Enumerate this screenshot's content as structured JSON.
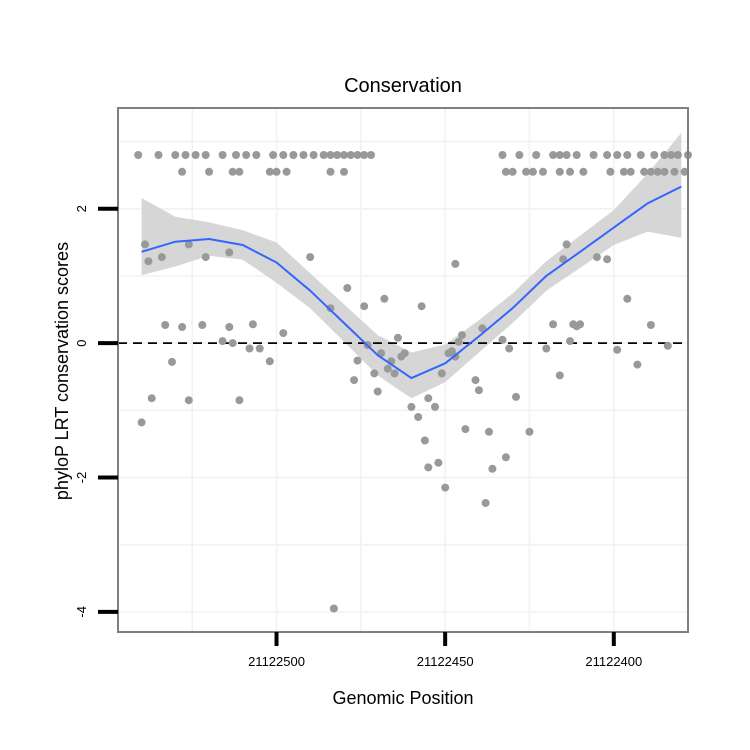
{
  "chart_data": {
    "type": "scatter",
    "title": "Conservation",
    "xlabel": "Genomic Position",
    "ylabel": "phyloP LRT conservation scores",
    "x_reversed": true,
    "xlim": [
      21122547,
      21122378
    ],
    "ylim": [
      -4.3,
      3.5
    ],
    "x_ticks": [
      {
        "value": 21122500,
        "label": "21122500"
      },
      {
        "value": 21122450,
        "label": "21122450"
      },
      {
        "value": 21122400,
        "label": "21122400"
      }
    ],
    "y_ticks": [
      {
        "value": 2,
        "label": "2"
      },
      {
        "value": 0,
        "label": "0"
      },
      {
        "value": -2,
        "label": "-2"
      },
      {
        "value": -4,
        "label": "-4"
      }
    ],
    "reference_line": {
      "y": 0,
      "style": "dashed"
    },
    "grid": true,
    "colors": {
      "points": "#999999",
      "smooth_line": "#3366ff",
      "ribbon": "#cccccc",
      "grid": "#f2f2f2",
      "frame": "#7f7f7f",
      "reference_line": "#000000"
    },
    "points": [
      [
        21122541,
        2.8
      ],
      [
        21122535,
        2.8
      ],
      [
        21122530,
        2.8
      ],
      [
        21122527,
        2.8
      ],
      [
        21122524,
        2.8
      ],
      [
        21122521,
        2.8
      ],
      [
        21122516,
        2.8
      ],
      [
        21122512,
        2.8
      ],
      [
        21122509,
        2.8
      ],
      [
        21122506,
        2.8
      ],
      [
        21122501,
        2.8
      ],
      [
        21122498,
        2.8
      ],
      [
        21122495,
        2.8
      ],
      [
        21122492,
        2.8
      ],
      [
        21122489,
        2.8
      ],
      [
        21122486,
        2.8
      ],
      [
        21122484,
        2.8
      ],
      [
        21122482,
        2.8
      ],
      [
        21122480,
        2.8
      ],
      [
        21122478,
        2.8
      ],
      [
        21122476,
        2.8
      ],
      [
        21122474,
        2.8
      ],
      [
        21122472,
        2.8
      ],
      [
        21122528,
        2.55
      ],
      [
        21122520,
        2.55
      ],
      [
        21122513,
        2.55
      ],
      [
        21122511,
        2.55
      ],
      [
        21122502,
        2.55
      ],
      [
        21122500,
        2.55
      ],
      [
        21122497,
        2.55
      ],
      [
        21122484,
        2.55
      ],
      [
        21122480,
        2.55
      ],
      [
        21122433,
        2.8
      ],
      [
        21122428,
        2.8
      ],
      [
        21122423,
        2.8
      ],
      [
        21122418,
        2.8
      ],
      [
        21122416,
        2.8
      ],
      [
        21122414,
        2.8
      ],
      [
        21122411,
        2.8
      ],
      [
        21122406,
        2.8
      ],
      [
        21122402,
        2.8
      ],
      [
        21122399,
        2.8
      ],
      [
        21122396,
        2.8
      ],
      [
        21122392,
        2.8
      ],
      [
        21122388,
        2.8
      ],
      [
        21122385,
        2.8
      ],
      [
        21122383,
        2.8
      ],
      [
        21122381,
        2.8
      ],
      [
        21122378,
        2.8
      ],
      [
        21122432,
        2.55
      ],
      [
        21122430,
        2.55
      ],
      [
        21122426,
        2.55
      ],
      [
        21122424,
        2.55
      ],
      [
        21122421,
        2.55
      ],
      [
        21122416,
        2.55
      ],
      [
        21122413,
        2.55
      ],
      [
        21122409,
        2.55
      ],
      [
        21122401,
        2.55
      ],
      [
        21122397,
        2.55
      ],
      [
        21122395,
        2.55
      ],
      [
        21122391,
        2.55
      ],
      [
        21122389,
        2.55
      ],
      [
        21122387,
        2.55
      ],
      [
        21122385,
        2.55
      ],
      [
        21122382,
        2.55
      ],
      [
        21122379,
        2.55
      ],
      [
        21122539,
        1.47
      ],
      [
        21122538,
        1.22
      ],
      [
        21122534,
        1.28
      ],
      [
        21122526,
        1.47
      ],
      [
        21122521,
        1.28
      ],
      [
        21122514,
        1.35
      ],
      [
        21122490,
        1.28
      ],
      [
        21122484,
        0.52
      ],
      [
        21122479,
        0.82
      ],
      [
        21122474,
        0.55
      ],
      [
        21122468,
        0.66
      ],
      [
        21122457,
        0.55
      ],
      [
        21122447,
        1.18
      ],
      [
        21122533,
        0.27
      ],
      [
        21122531,
        -0.28
      ],
      [
        21122528,
        0.24
      ],
      [
        21122522,
        0.27
      ],
      [
        21122516,
        0.03
      ],
      [
        21122514,
        0.24
      ],
      [
        21122513,
        0.0
      ],
      [
        21122508,
        -0.08
      ],
      [
        21122507,
        0.28
      ],
      [
        21122505,
        -0.08
      ],
      [
        21122502,
        -0.27
      ],
      [
        21122498,
        0.15
      ],
      [
        21122540,
        -1.18
      ],
      [
        21122537,
        -0.82
      ],
      [
        21122526,
        -0.85
      ],
      [
        21122511,
        -0.85
      ],
      [
        21122477,
        -0.55
      ],
      [
        21122476,
        -0.26
      ],
      [
        21122473,
        -0.03
      ],
      [
        21122471,
        -0.45
      ],
      [
        21122470,
        -0.72
      ],
      [
        21122469,
        -0.15
      ],
      [
        21122467,
        -0.38
      ],
      [
        21122466,
        -0.27
      ],
      [
        21122465,
        -0.45
      ],
      [
        21122464,
        0.08
      ],
      [
        21122463,
        -0.2
      ],
      [
        21122462,
        -0.15
      ],
      [
        21122460,
        -0.95
      ],
      [
        21122458,
        -1.1
      ],
      [
        21122456,
        -1.45
      ],
      [
        21122455,
        -1.85
      ],
      [
        21122455,
        -0.82
      ],
      [
        21122453,
        -0.95
      ],
      [
        21122452,
        -1.78
      ],
      [
        21122450,
        -2.15
      ],
      [
        21122451,
        -0.45
      ],
      [
        21122449,
        -0.15
      ],
      [
        21122448,
        -0.12
      ],
      [
        21122447,
        -0.2
      ],
      [
        21122446,
        0.02
      ],
      [
        21122445,
        0.12
      ],
      [
        21122444,
        -1.28
      ],
      [
        21122441,
        -0.55
      ],
      [
        21122440,
        -0.7
      ],
      [
        21122439,
        0.22
      ],
      [
        21122438,
        -2.38
      ],
      [
        21122437,
        -1.32
      ],
      [
        21122436,
        -1.87
      ],
      [
        21122433,
        0.05
      ],
      [
        21122432,
        -1.7
      ],
      [
        21122431,
        -0.08
      ],
      [
        21122429,
        -0.8
      ],
      [
        21122425,
        -1.32
      ],
      [
        21122420,
        -0.08
      ],
      [
        21122418,
        0.28
      ],
      [
        21122415,
        1.25
      ],
      [
        21122414,
        1.47
      ],
      [
        21122413,
        0.03
      ],
      [
        21122412,
        0.28
      ],
      [
        21122411,
        0.25
      ],
      [
        21122410,
        0.28
      ],
      [
        21122416,
        -0.48
      ],
      [
        21122405,
        1.28
      ],
      [
        21122402,
        1.25
      ],
      [
        21122399,
        -0.1
      ],
      [
        21122396,
        0.66
      ],
      [
        21122393,
        -0.32
      ],
      [
        21122389,
        0.27
      ],
      [
        21122384,
        -0.04
      ],
      [
        21122483,
        -3.95
      ]
    ],
    "smooth_fit": [
      {
        "x": 21122540,
        "y": 1.36,
        "lo": 1.01,
        "hi": 2.16
      },
      {
        "x": 21122530,
        "y": 1.51,
        "lo": 1.14,
        "hi": 1.88
      },
      {
        "x": 21122520,
        "y": 1.55,
        "lo": 1.3,
        "hi": 1.8
      },
      {
        "x": 21122510,
        "y": 1.46,
        "lo": 1.24,
        "hi": 1.68
      },
      {
        "x": 21122500,
        "y": 1.2,
        "lo": 0.9,
        "hi": 1.5
      },
      {
        "x": 21122490,
        "y": 0.78,
        "lo": 0.52,
        "hi": 1.04
      },
      {
        "x": 21122480,
        "y": 0.3,
        "lo": 0.02,
        "hi": 0.58
      },
      {
        "x": 21122470,
        "y": -0.18,
        "lo": -0.48,
        "hi": 0.12
      },
      {
        "x": 21122460,
        "y": -0.52,
        "lo": -0.82,
        "hi": -0.14
      },
      {
        "x": 21122450,
        "y": -0.3,
        "lo": -0.58,
        "hi": -0.02
      },
      {
        "x": 21122440,
        "y": 0.1,
        "lo": -0.14,
        "hi": 0.34
      },
      {
        "x": 21122430,
        "y": 0.52,
        "lo": 0.3,
        "hi": 0.74
      },
      {
        "x": 21122420,
        "y": 1.0,
        "lo": 0.78,
        "hi": 1.22
      },
      {
        "x": 21122410,
        "y": 1.36,
        "lo": 1.12,
        "hi": 1.6
      },
      {
        "x": 21122400,
        "y": 1.72,
        "lo": 1.46,
        "hi": 1.98
      },
      {
        "x": 21122390,
        "y": 2.08,
        "lo": 1.66,
        "hi": 2.52
      },
      {
        "x": 21122380,
        "y": 2.33,
        "lo": 1.57,
        "hi": 3.13
      }
    ]
  }
}
